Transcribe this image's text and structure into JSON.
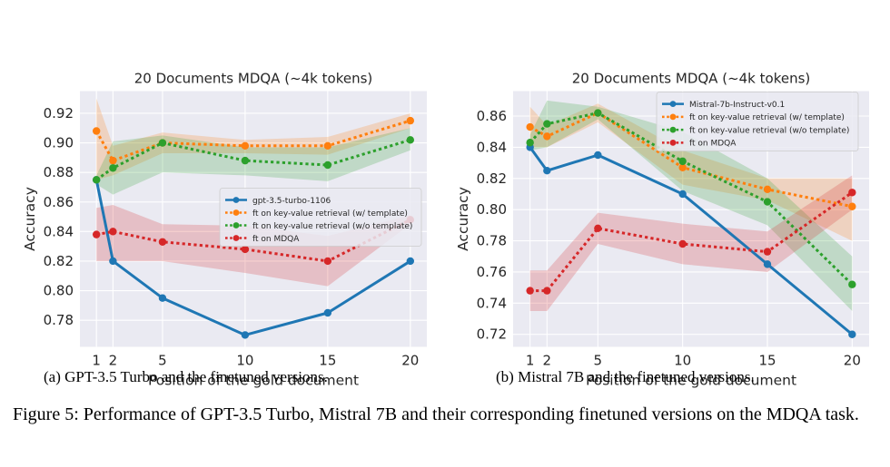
{
  "chart_data": [
    {
      "type": "line",
      "title": "20 Documents MDQA (~4k tokens)",
      "xlabel": "Position of the gold document",
      "ylabel": "Accuracy",
      "x": [
        1,
        2,
        5,
        10,
        15,
        20
      ],
      "xlim": [
        0,
        21
      ],
      "ylim": [
        0.762,
        0.935
      ],
      "yticks": [
        0.78,
        0.8,
        0.82,
        0.84,
        0.86,
        0.88,
        0.9,
        0.92
      ],
      "ytick_labels": [
        "0.78",
        "0.80",
        "0.82",
        "0.84",
        "0.86",
        "0.88",
        "0.90",
        "0.92"
      ],
      "xtick_labels": [
        "1",
        "2",
        "5",
        "10",
        "15",
        "20"
      ],
      "legend_position": "center-right",
      "series": [
        {
          "name": "gpt-3.5-turbo-1106",
          "style": "solid",
          "color": "#1f77b4",
          "values": [
            0.875,
            0.82,
            0.795,
            0.77,
            0.785,
            0.82
          ],
          "band": null
        },
        {
          "name": "ft on key-value retrieval (w/ template)",
          "style": "dotted",
          "color": "#ff7f0e",
          "values": [
            0.908,
            0.888,
            0.9,
            0.898,
            0.898,
            0.915
          ],
          "band": {
            "lower": [
              0.875,
              0.878,
              0.893,
              0.893,
              0.892,
              0.91
            ],
            "upper": [
              0.93,
              0.898,
              0.907,
              0.902,
              0.904,
              0.92
            ]
          }
        },
        {
          "name": "ft on key-value retrieval (w/o template)",
          "style": "dotted",
          "color": "#2ca02c",
          "values": [
            0.875,
            0.883,
            0.9,
            0.888,
            0.885,
            0.902
          ],
          "band": {
            "lower": [
              0.872,
              0.865,
              0.88,
              0.878,
              0.874,
              0.895
            ],
            "upper": [
              0.878,
              0.901,
              0.905,
              0.897,
              0.897,
              0.91
            ]
          }
        },
        {
          "name": "ft on MDQA",
          "style": "dotted",
          "color": "#d62728",
          "values": [
            0.838,
            0.84,
            0.833,
            0.828,
            0.82,
            0.848
          ],
          "band": {
            "lower": [
              0.82,
              0.82,
              0.82,
              0.812,
              0.803,
              0.845
            ],
            "upper": [
              0.856,
              0.858,
              0.845,
              0.844,
              0.837,
              0.851
            ]
          }
        }
      ]
    },
    {
      "type": "line",
      "title": "20 Documents MDQA (~4k tokens)",
      "xlabel": "Position of the gold document",
      "ylabel": "Accuracy",
      "x": [
        1,
        2,
        5,
        10,
        15,
        20
      ],
      "xlim": [
        0,
        21
      ],
      "ylim": [
        0.712,
        0.876
      ],
      "yticks": [
        0.72,
        0.74,
        0.76,
        0.78,
        0.8,
        0.82,
        0.84,
        0.86
      ],
      "ytick_labels": [
        "0.72",
        "0.74",
        "0.76",
        "0.78",
        "0.80",
        "0.82",
        "0.84",
        "0.86"
      ],
      "xtick_labels": [
        "1",
        "2",
        "5",
        "10",
        "15",
        "20"
      ],
      "legend_position": "upper-right",
      "series": [
        {
          "name": "Mistral-7b-Instruct-v0.1",
          "style": "solid",
          "color": "#1f77b4",
          "values": [
            0.84,
            0.825,
            0.835,
            0.81,
            0.765,
            0.72
          ],
          "band": null
        },
        {
          "name": "ft on key-value retrieval (w/ template)",
          "style": "dotted",
          "color": "#ff7f0e",
          "values": [
            0.853,
            0.847,
            0.862,
            0.827,
            0.813,
            0.802
          ],
          "band": {
            "lower": [
              0.84,
              0.84,
              0.856,
              0.816,
              0.806,
              0.78
            ],
            "upper": [
              0.866,
              0.854,
              0.868,
              0.838,
              0.82,
              0.82
            ]
          }
        },
        {
          "name": "ft on key-value retrieval (w/o template)",
          "style": "dotted",
          "color": "#2ca02c",
          "values": [
            0.843,
            0.855,
            0.862,
            0.831,
            0.805,
            0.752
          ],
          "band": {
            "lower": [
              0.838,
              0.84,
              0.858,
              0.812,
              0.79,
              0.735
            ],
            "upper": [
              0.848,
              0.87,
              0.866,
              0.85,
              0.82,
              0.77
            ]
          }
        },
        {
          "name": "ft on MDQA",
          "style": "dotted",
          "color": "#d62728",
          "values": [
            0.748,
            0.748,
            0.788,
            0.778,
            0.773,
            0.811
          ],
          "band": {
            "lower": [
              0.735,
              0.735,
              0.778,
              0.765,
              0.76,
              0.8
            ],
            "upper": [
              0.761,
              0.761,
              0.798,
              0.791,
              0.786,
              0.822
            ]
          }
        }
      ]
    }
  ],
  "subcaptions": {
    "a": "(a) GPT-3.5 Turbo and the finetuned versions.",
    "b": "(b) Mistral 7B and the finetuned versions."
  },
  "figure_caption": "Figure 5: Performance of GPT-3.5 Turbo, Mistral 7B and their corresponding finetuned versions on the MDQA task.",
  "colors": {
    "plot_bg": "#eaeaf2",
    "grid": "#ffffff",
    "blue": "#1f77b4",
    "orange": "#ff7f0e",
    "green": "#2ca02c",
    "red": "#d62728"
  }
}
